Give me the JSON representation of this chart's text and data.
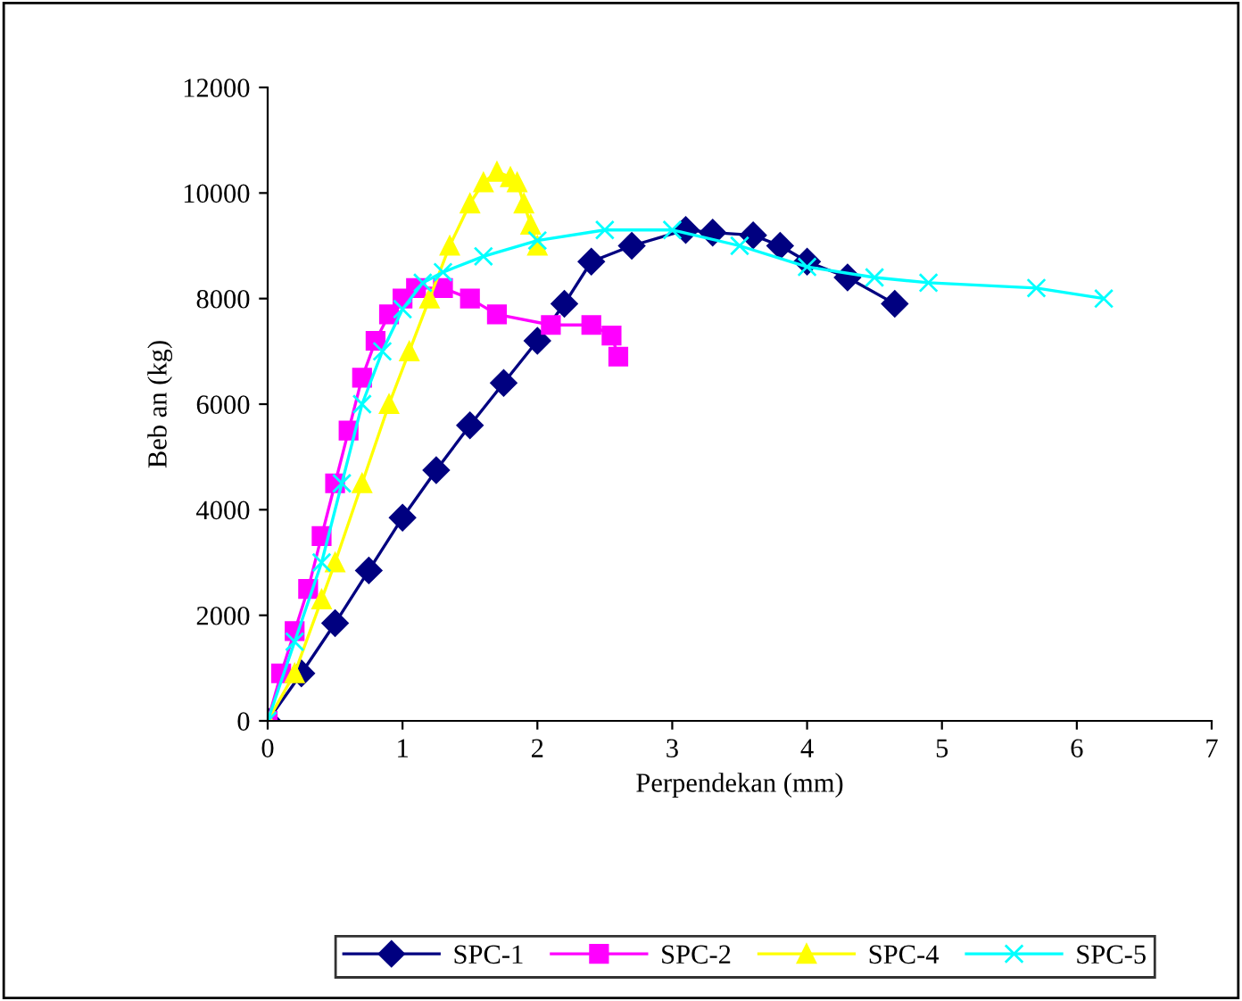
{
  "chart_data": {
    "type": "line",
    "xlabel": "Perpendekan (mm)",
    "ylabel": "Beb an (kg)",
    "xlim": [
      0,
      7
    ],
    "xticks": [
      0,
      1,
      2,
      3,
      4,
      5,
      6,
      7
    ],
    "ylim": [
      0,
      12000
    ],
    "yticks": [
      0,
      2000,
      4000,
      6000,
      8000,
      10000,
      12000
    ],
    "grid": false,
    "legend": "bottom",
    "series": [
      {
        "name": "SPC-1",
        "color": "#000080",
        "marker": "diamond",
        "x": [
          0,
          0.25,
          0.5,
          0.75,
          1.0,
          1.25,
          1.5,
          1.75,
          2.0,
          2.2,
          2.4,
          2.7,
          3.1,
          3.3,
          3.6,
          3.8,
          4.0,
          4.3,
          4.65
        ],
        "values": [
          0,
          900,
          1850,
          2850,
          3850,
          4750,
          5600,
          6400,
          7200,
          7900,
          8700,
          9000,
          9300,
          9250,
          9200,
          9000,
          8700,
          8400,
          7900
        ]
      },
      {
        "name": "SPC-2",
        "color": "#ff00ff",
        "marker": "square",
        "x": [
          0,
          0.1,
          0.2,
          0.3,
          0.4,
          0.5,
          0.6,
          0.7,
          0.8,
          0.9,
          1.0,
          1.1,
          1.3,
          1.5,
          1.7,
          2.1,
          2.4,
          2.55,
          2.6
        ],
        "values": [
          0,
          900,
          1700,
          2500,
          3500,
          4500,
          5500,
          6500,
          7200,
          7700,
          8000,
          8200,
          8200,
          8000,
          7700,
          7500,
          7500,
          7300,
          6900
        ]
      },
      {
        "name": "SPC-4",
        "color": "#ffff00",
        "marker": "triangle",
        "x": [
          0,
          0.2,
          0.4,
          0.5,
          0.7,
          0.9,
          1.05,
          1.2,
          1.35,
          1.5,
          1.6,
          1.7,
          1.8,
          1.85,
          1.9,
          1.95,
          2.0
        ],
        "values": [
          0,
          900,
          2300,
          3000,
          4500,
          6000,
          7000,
          8000,
          9000,
          9800,
          10200,
          10400,
          10300,
          10200,
          9800,
          9400,
          9000
        ]
      },
      {
        "name": "SPC-5",
        "color": "#00ffff",
        "marker": "cross",
        "x": [
          0,
          0.2,
          0.4,
          0.55,
          0.7,
          0.85,
          1.0,
          1.15,
          1.3,
          1.6,
          2.0,
          2.5,
          3.0,
          3.5,
          4.0,
          4.5,
          4.9,
          5.7,
          6.2
        ],
        "values": [
          0,
          1500,
          3000,
          4500,
          6000,
          7000,
          7800,
          8300,
          8500,
          8800,
          9100,
          9300,
          9300,
          9000,
          8600,
          8400,
          8300,
          8200,
          8000
        ]
      }
    ]
  }
}
